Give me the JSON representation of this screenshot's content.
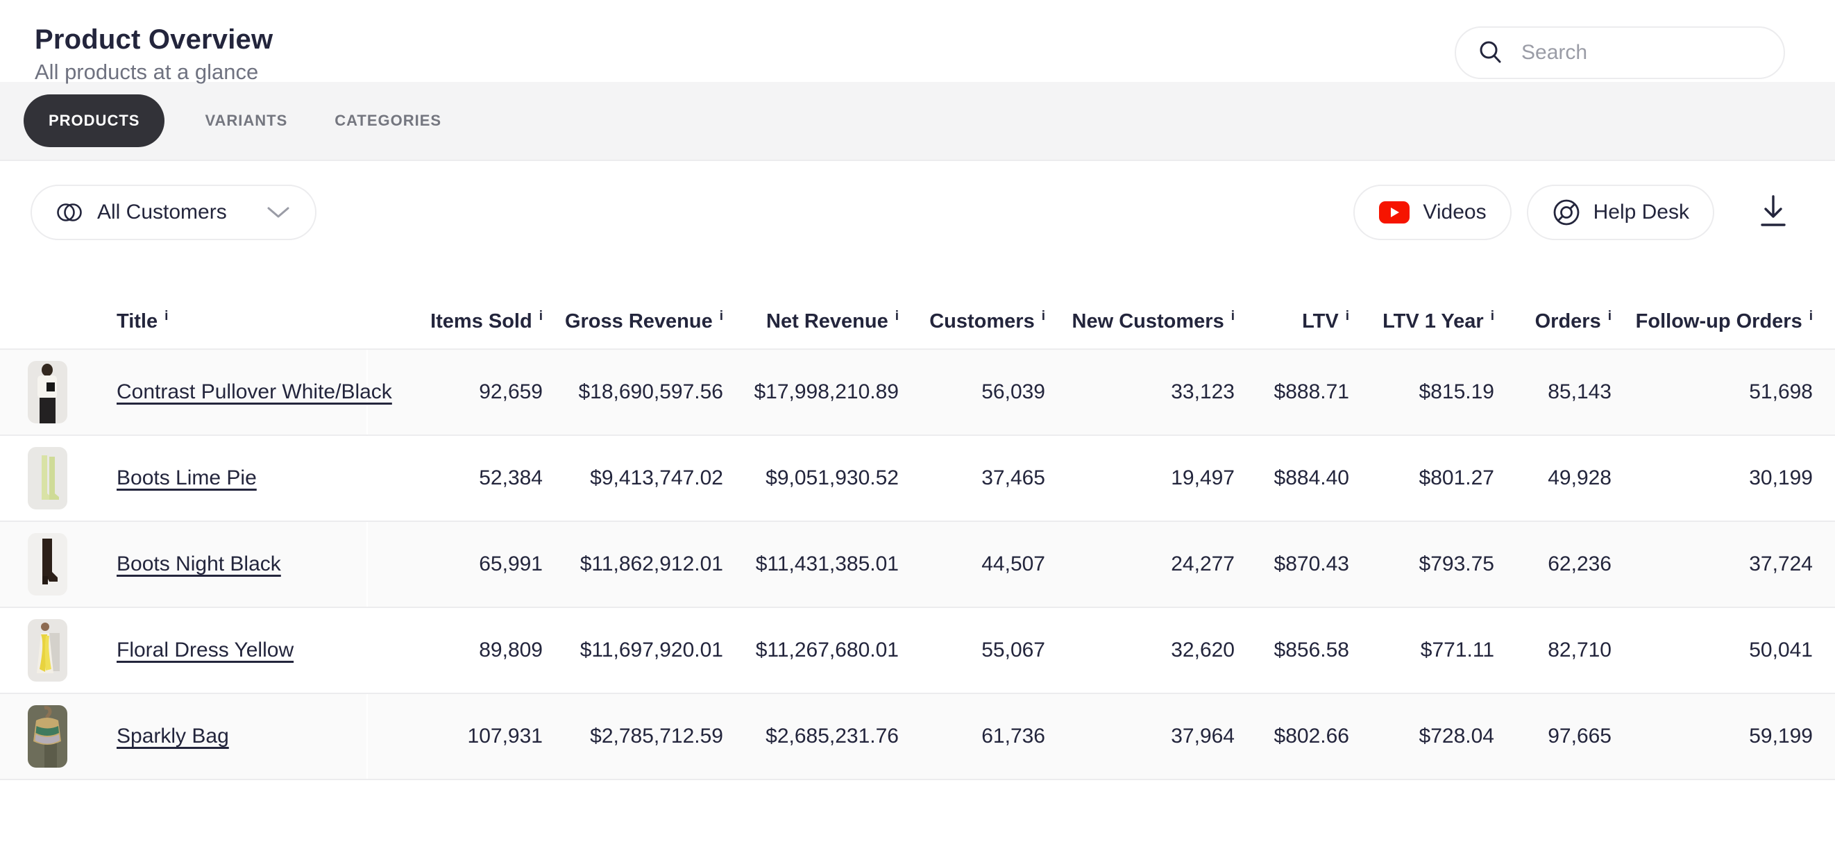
{
  "header": {
    "title": "Product Overview",
    "subtitle": "All products at a glance",
    "search_placeholder": "Search"
  },
  "tabs": [
    {
      "label": "PRODUCTS",
      "active": true
    },
    {
      "label": "VARIANTS",
      "active": false
    },
    {
      "label": "CATEGORIES",
      "active": false
    }
  ],
  "toolbar": {
    "customer_filter_value": "All Customers",
    "videos_label": "Videos",
    "help_desk_label": "Help Desk",
    "icons": [
      "customers-venn-icon",
      "chevron-down-icon",
      "youtube-icon",
      "lifebuoy-icon",
      "download-icon",
      "search-icon"
    ]
  },
  "colors": {
    "text_dark": "#23253c",
    "text_gray": "#6f7280",
    "border": "#ececee",
    "stripe_bg": "#fafafa",
    "tabstrip_bg": "#f4f4f5",
    "active_tab_bg": "#323238",
    "youtube_red": "#f61400"
  },
  "table": {
    "columns": [
      {
        "label": "Title",
        "has_info": true
      },
      {
        "label": "Items Sold",
        "has_info": true
      },
      {
        "label": "Gross Revenue",
        "has_info": true
      },
      {
        "label": "Net Revenue",
        "has_info": true
      },
      {
        "label": "Customers",
        "has_info": true
      },
      {
        "label": "New Customers",
        "has_info": true
      },
      {
        "label": "LTV",
        "has_info": true
      },
      {
        "label": "LTV 1 Year",
        "has_info": true
      },
      {
        "label": "Orders",
        "has_info": true
      },
      {
        "label": "Follow-up Orders",
        "has_info": true
      }
    ],
    "rows": [
      {
        "title": "Contrast Pullover White/Black",
        "thumb": "pullover-photo",
        "items_sold": "92,659",
        "gross_revenue": "$18,690,597.56",
        "net_revenue": "$17,998,210.89",
        "customers": "56,039",
        "new_customers": "33,123",
        "ltv": "$888.71",
        "ltv_1_year": "$815.19",
        "orders": "85,143",
        "follow_up_orders": "51,698"
      },
      {
        "title": "Boots Lime Pie",
        "thumb": "lime-boots-photo",
        "items_sold": "52,384",
        "gross_revenue": "$9,413,747.02",
        "net_revenue": "$9,051,930.52",
        "customers": "37,465",
        "new_customers": "19,497",
        "ltv": "$884.40",
        "ltv_1_year": "$801.27",
        "orders": "49,928",
        "follow_up_orders": "30,199"
      },
      {
        "title": "Boots Night Black",
        "thumb": "black-boots-photo",
        "items_sold": "65,991",
        "gross_revenue": "$11,862,912.01",
        "net_revenue": "$11,431,385.01",
        "customers": "44,507",
        "new_customers": "24,277",
        "ltv": "$870.43",
        "ltv_1_year": "$793.75",
        "orders": "62,236",
        "follow_up_orders": "37,724"
      },
      {
        "title": "Floral Dress Yellow",
        "thumb": "floral-dress-photo",
        "items_sold": "89,809",
        "gross_revenue": "$11,697,920.01",
        "net_revenue": "$11,267,680.01",
        "customers": "55,067",
        "new_customers": "32,620",
        "ltv": "$856.58",
        "ltv_1_year": "$771.11",
        "orders": "82,710",
        "follow_up_orders": "50,041"
      },
      {
        "title": "Sparkly Bag",
        "thumb": "sparkly-bag-photo",
        "items_sold": "107,931",
        "gross_revenue": "$2,785,712.59",
        "net_revenue": "$2,685,231.76",
        "customers": "61,736",
        "new_customers": "37,964",
        "ltv": "$802.66",
        "ltv_1_year": "$728.04",
        "orders": "97,665",
        "follow_up_orders": "59,199"
      }
    ]
  }
}
